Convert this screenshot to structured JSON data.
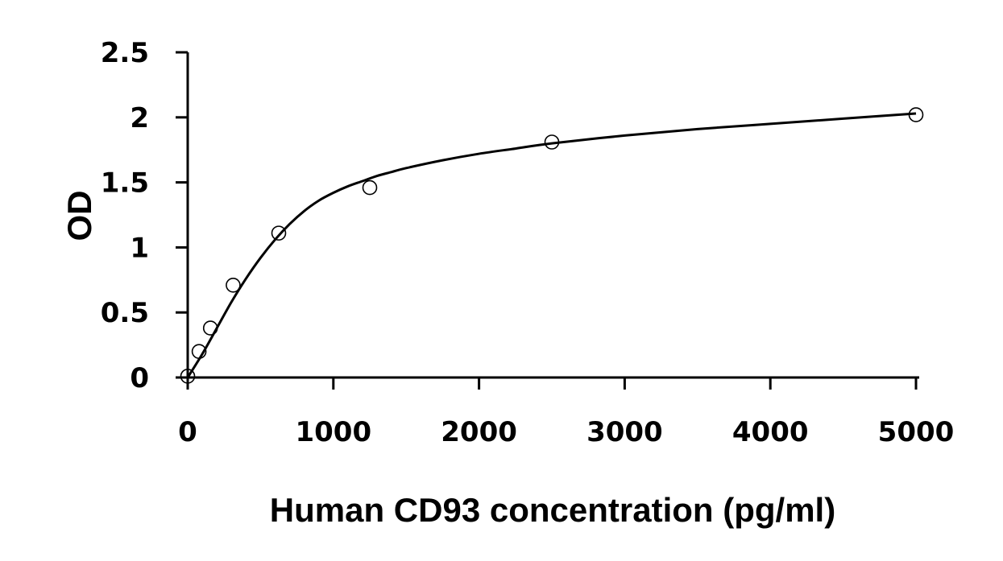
{
  "chart_data": {
    "type": "scatter",
    "title": "",
    "xlabel": "Human CD93 concentration (pg/ml)",
    "ylabel": "OD",
    "xlim": [
      0,
      5000
    ],
    "ylim": [
      0,
      2.5
    ],
    "x_ticks": [
      "0",
      "1000",
      "2000",
      "3000",
      "4000",
      "5000"
    ],
    "y_ticks": [
      "0",
      "0.5",
      "1",
      "1.5",
      "2",
      "2.5"
    ],
    "grid": false,
    "legend": "none",
    "series": [
      {
        "marker": "open-circle",
        "x": [
          0,
          78,
          156,
          312,
          625,
          1250,
          2500,
          5000
        ],
        "y": [
          0.01,
          0.2,
          0.38,
          0.71,
          1.11,
          1.46,
          1.81,
          2.02
        ]
      }
    ],
    "fit_curve": {
      "style": "smooth-line",
      "x": [
        0,
        100,
        200,
        300,
        400,
        500,
        600,
        700,
        800,
        900,
        1000,
        1100,
        1200,
        1300,
        1400,
        1500,
        1750,
        2000,
        2250,
        2500,
        3000,
        3500,
        4000,
        4500,
        5000
      ],
      "y": [
        0.0,
        0.18,
        0.38,
        0.58,
        0.76,
        0.92,
        1.06,
        1.18,
        1.28,
        1.36,
        1.42,
        1.47,
        1.51,
        1.55,
        1.58,
        1.61,
        1.67,
        1.72,
        1.76,
        1.8,
        1.86,
        1.91,
        1.95,
        1.99,
        2.03
      ]
    },
    "colors": {
      "axis": "#000000",
      "line": "#000000",
      "marker_stroke": "#000000",
      "background": "#ffffff"
    }
  }
}
